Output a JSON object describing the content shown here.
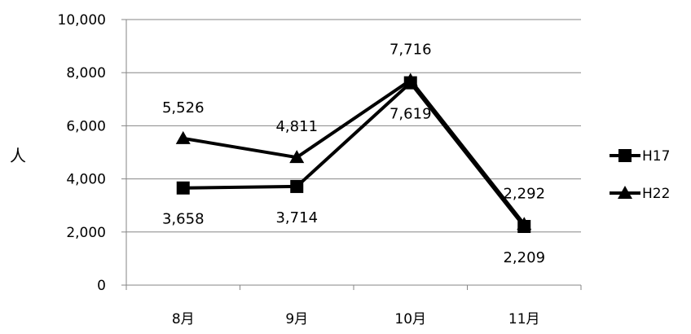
{
  "chart_data": {
    "type": "line",
    "categories": [
      "8月",
      "9月",
      "10月",
      "11月"
    ],
    "series": [
      {
        "name": "H17",
        "marker": "square",
        "values": [
          3658,
          3714,
          7619,
          2209
        ],
        "labels": [
          "3,658",
          "3,714",
          "7,619",
          "2,209"
        ]
      },
      {
        "name": "H22",
        "marker": "triangle",
        "values": [
          5526,
          4811,
          7716,
          2292
        ],
        "labels": [
          "5,526",
          "4,811",
          "7,716",
          "2,292"
        ]
      }
    ],
    "y_ticks": [
      0,
      2000,
      4000,
      6000,
      8000,
      10000
    ],
    "y_tick_labels": [
      "0",
      "2,000",
      "4,000",
      "6,000",
      "8,000",
      "10,000"
    ],
    "ylim": [
      0,
      10000
    ],
    "ylabel": "人",
    "xlabel": "",
    "grid": true,
    "legend": "right",
    "colors": {
      "line": "#000000",
      "grid": "#868686",
      "axis": "#868686"
    }
  }
}
